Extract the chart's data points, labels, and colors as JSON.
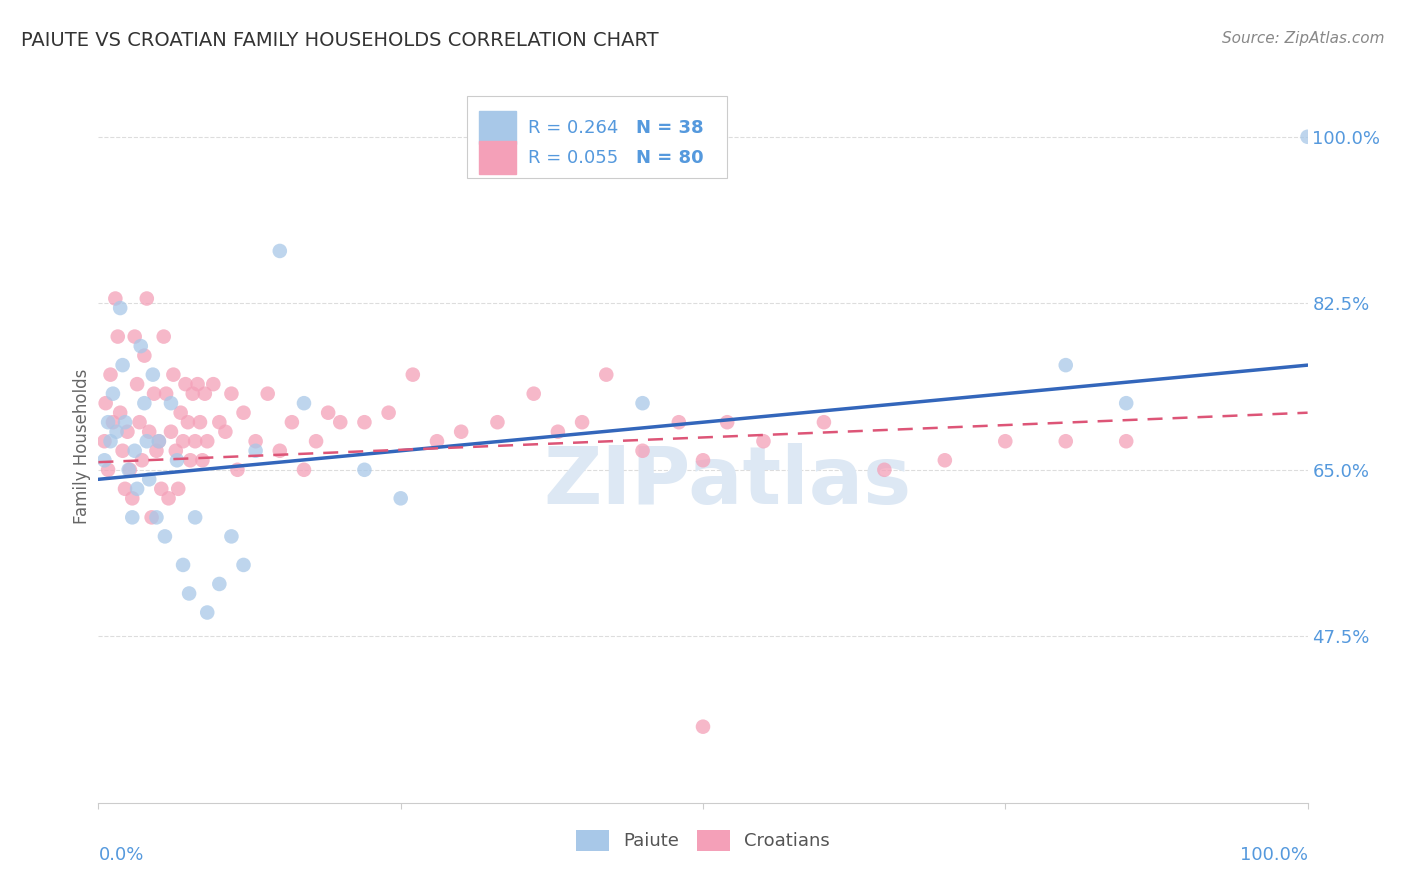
{
  "title": "PAIUTE VS CROATIAN FAMILY HOUSEHOLDS CORRELATION CHART",
  "source": "Source: ZipAtlas.com",
  "ylabel": "Family Households",
  "ytick_labels": [
    "47.5%",
    "65.0%",
    "82.5%",
    "100.0%"
  ],
  "ytick_values": [
    0.475,
    0.65,
    0.825,
    1.0
  ],
  "xlim": [
    0.0,
    1.0
  ],
  "ylim": [
    0.3,
    1.05
  ],
  "color_blue": "#a8c8e8",
  "color_pink": "#f4a0b8",
  "line_blue": "#3366bb",
  "line_pink": "#dd5577",
  "bg_color": "#ffffff",
  "grid_color": "#dddddd",
  "tick_color": "#5599dd",
  "title_color": "#333333",
  "source_color": "#888888",
  "ylabel_color": "#666666",
  "watermark_color": "#dde8f4",
  "paiute_x": [
    0.005,
    0.008,
    0.01,
    0.012,
    0.015,
    0.018,
    0.02,
    0.022,
    0.025,
    0.028,
    0.03,
    0.032,
    0.035,
    0.038,
    0.04,
    0.042,
    0.045,
    0.048,
    0.05,
    0.055,
    0.06,
    0.065,
    0.07,
    0.075,
    0.08,
    0.09,
    0.1,
    0.11,
    0.12,
    0.13,
    0.15,
    0.17,
    0.22,
    0.25,
    0.45,
    0.8,
    0.85,
    1.0
  ],
  "paiute_y": [
    0.66,
    0.7,
    0.68,
    0.73,
    0.69,
    0.82,
    0.76,
    0.7,
    0.65,
    0.6,
    0.67,
    0.63,
    0.78,
    0.72,
    0.68,
    0.64,
    0.75,
    0.6,
    0.68,
    0.58,
    0.72,
    0.66,
    0.55,
    0.52,
    0.6,
    0.5,
    0.53,
    0.58,
    0.55,
    0.67,
    0.88,
    0.72,
    0.65,
    0.62,
    0.72,
    0.76,
    0.72,
    1.0
  ],
  "croatian_x": [
    0.005,
    0.006,
    0.008,
    0.01,
    0.012,
    0.014,
    0.016,
    0.018,
    0.02,
    0.022,
    0.024,
    0.026,
    0.028,
    0.03,
    0.032,
    0.034,
    0.036,
    0.038,
    0.04,
    0.042,
    0.044,
    0.046,
    0.048,
    0.05,
    0.052,
    0.054,
    0.056,
    0.058,
    0.06,
    0.062,
    0.064,
    0.066,
    0.068,
    0.07,
    0.072,
    0.074,
    0.076,
    0.078,
    0.08,
    0.082,
    0.084,
    0.086,
    0.088,
    0.09,
    0.095,
    0.1,
    0.105,
    0.11,
    0.115,
    0.12,
    0.13,
    0.14,
    0.15,
    0.16,
    0.17,
    0.18,
    0.19,
    0.2,
    0.22,
    0.24,
    0.26,
    0.28,
    0.3,
    0.33,
    0.36,
    0.38,
    0.4,
    0.42,
    0.45,
    0.48,
    0.5,
    0.52,
    0.55,
    0.6,
    0.65,
    0.7,
    0.75,
    0.8,
    0.85,
    0.5
  ],
  "croatian_y": [
    0.68,
    0.72,
    0.65,
    0.75,
    0.7,
    0.83,
    0.79,
    0.71,
    0.67,
    0.63,
    0.69,
    0.65,
    0.62,
    0.79,
    0.74,
    0.7,
    0.66,
    0.77,
    0.83,
    0.69,
    0.6,
    0.73,
    0.67,
    0.68,
    0.63,
    0.79,
    0.73,
    0.62,
    0.69,
    0.75,
    0.67,
    0.63,
    0.71,
    0.68,
    0.74,
    0.7,
    0.66,
    0.73,
    0.68,
    0.74,
    0.7,
    0.66,
    0.73,
    0.68,
    0.74,
    0.7,
    0.69,
    0.73,
    0.65,
    0.71,
    0.68,
    0.73,
    0.67,
    0.7,
    0.65,
    0.68,
    0.71,
    0.7,
    0.7,
    0.71,
    0.75,
    0.68,
    0.69,
    0.7,
    0.73,
    0.69,
    0.7,
    0.75,
    0.67,
    0.7,
    0.66,
    0.7,
    0.68,
    0.7,
    0.65,
    0.66,
    0.68,
    0.68,
    0.68,
    0.38
  ],
  "blue_line_x": [
    0.0,
    1.0
  ],
  "blue_line_y": [
    0.64,
    0.76
  ],
  "pink_line_x": [
    0.0,
    1.0
  ],
  "pink_line_y": [
    0.658,
    0.71
  ]
}
